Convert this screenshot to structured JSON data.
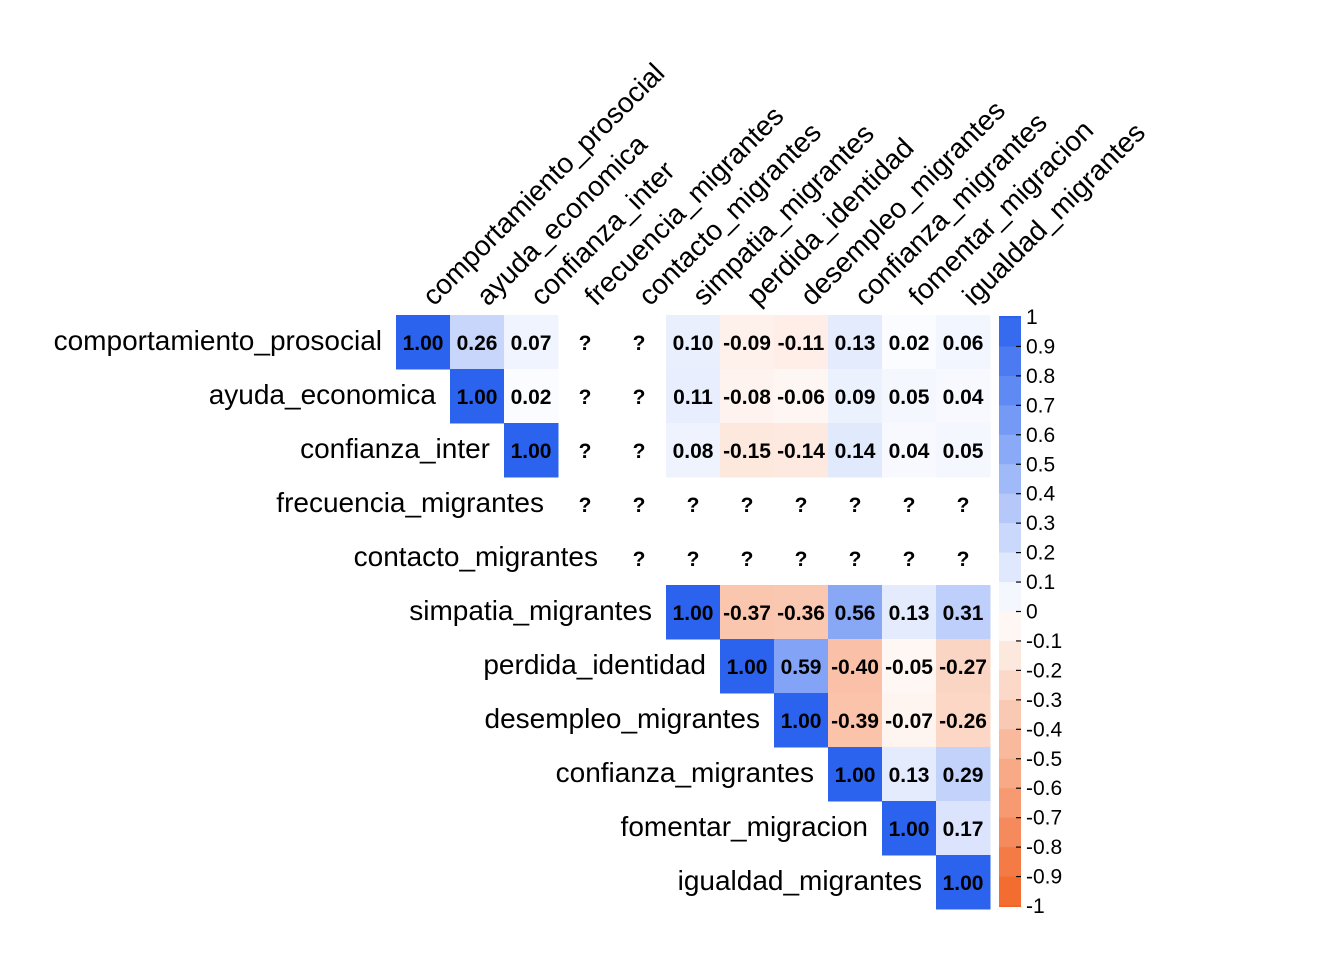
{
  "chart_data": {
    "type": "heatmap",
    "variables": [
      "comportamiento_prosocial",
      "ayuda_economica",
      "confianza_inter",
      "frecuencia_migrantes",
      "contacto_migrantes",
      "simpatia_migrantes",
      "perdida_identidad",
      "desempleo_migrantes",
      "confianza_migrantes",
      "fomentar_migracion",
      "igualdad_migrantes"
    ],
    "matrix": [
      [
        1.0,
        0.26,
        0.07,
        null,
        null,
        0.1,
        -0.09,
        -0.11,
        0.13,
        0.02,
        0.06
      ],
      [
        null,
        1.0,
        0.02,
        null,
        null,
        0.11,
        -0.08,
        -0.06,
        0.09,
        0.05,
        0.04
      ],
      [
        null,
        null,
        1.0,
        null,
        null,
        0.08,
        -0.15,
        -0.14,
        0.14,
        0.04,
        0.05
      ],
      [
        null,
        null,
        null,
        null,
        null,
        null,
        null,
        null,
        null,
        null,
        null
      ],
      [
        null,
        null,
        null,
        null,
        null,
        null,
        null,
        null,
        null,
        null,
        null
      ],
      [
        null,
        null,
        null,
        null,
        null,
        1.0,
        -0.37,
        -0.36,
        0.56,
        0.13,
        0.31
      ],
      [
        null,
        null,
        null,
        null,
        null,
        null,
        1.0,
        0.59,
        -0.4,
        -0.05,
        -0.27
      ],
      [
        null,
        null,
        null,
        null,
        null,
        null,
        null,
        1.0,
        -0.39,
        -0.07,
        -0.26
      ],
      [
        null,
        null,
        null,
        null,
        null,
        null,
        null,
        null,
        1.0,
        0.13,
        0.29
      ],
      [
        null,
        null,
        null,
        null,
        null,
        null,
        null,
        null,
        null,
        1.0,
        0.17
      ],
      [
        null,
        null,
        null,
        null,
        null,
        null,
        null,
        null,
        null,
        null,
        1.0
      ]
    ],
    "missing_symbol": "?",
    "triangle": "upper",
    "colorbar": {
      "range": [
        -1,
        1
      ],
      "ticks": [
        "1",
        "0.9",
        "0.8",
        "0.7",
        "0.6",
        "0.5",
        "0.4",
        "0.3",
        "0.2",
        "0.1",
        "0",
        "-0.1",
        "-0.2",
        "-0.3",
        "-0.4",
        "-0.5",
        "-0.6",
        "-0.7",
        "-0.8",
        "-0.9",
        "-1"
      ],
      "positive_color": "#2b63ef",
      "negative_color": "#f26425",
      "neutral_color": "#ffffff"
    }
  }
}
